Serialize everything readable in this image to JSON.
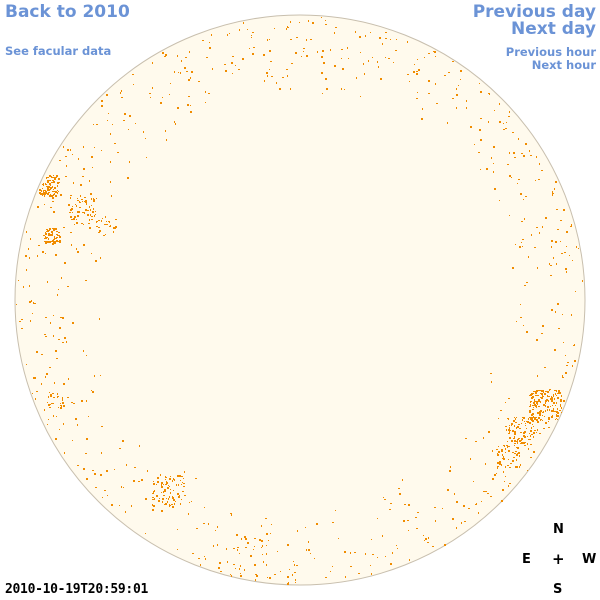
{
  "nav": {
    "back": "Back to 2010",
    "facular": "See facular data",
    "prev_day": "Previous day",
    "next_day": "Next day",
    "prev_hour": "Previous hour",
    "next_hour": "Next hour"
  },
  "compass": {
    "north": "N",
    "east": "E",
    "center": "+",
    "west": "W",
    "south": "S"
  },
  "timestamp": "2010-10-19T20:59:01",
  "colors": {
    "link": "#6b93d6",
    "disk_fill": "#fffaed",
    "disk_stroke": "#c8bfae",
    "facula": "#f08c00"
  }
}
